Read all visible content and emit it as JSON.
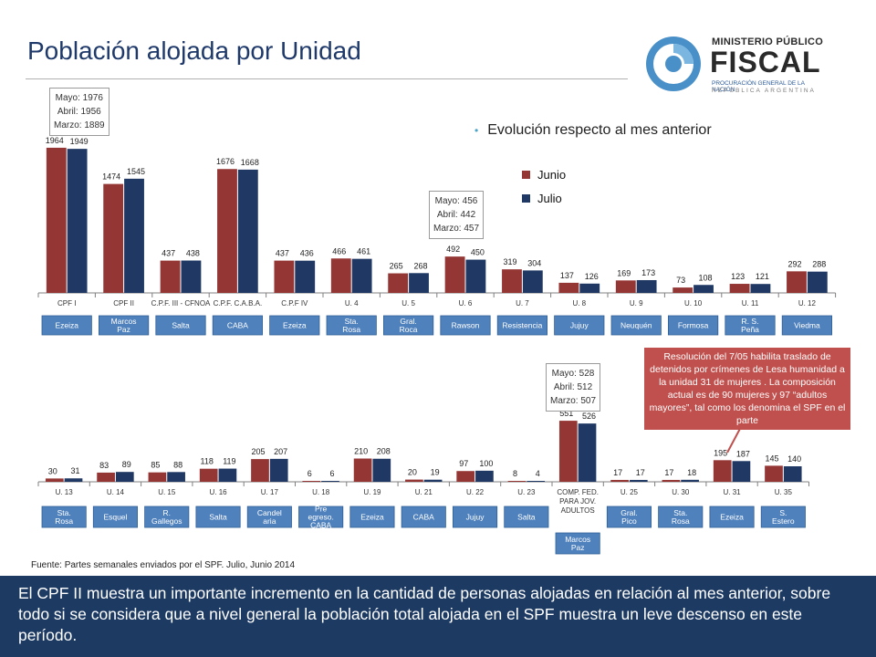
{
  "title": "Población alojada por Unidad",
  "logo": {
    "line1": "MINISTERIO PÚBLICO",
    "line2": "FISCAL",
    "line3": "PROCURACIÓN GENERAL DE LA NACIÓN",
    "line4": "REPÚBLICA ARGENTINA"
  },
  "subtitle": "Evolución respecto al mes anterior",
  "colors": {
    "junio": "#943634",
    "julio": "#1f3864",
    "badge": "#4f81bd",
    "callout": "#c0504d",
    "footer": "#1d3a63"
  },
  "notes": {
    "cpf1": "Mayo: 1976\nAbril: 1956\nMarzo: 1889",
    "u6": "Mayo: 456\nAbril: 442\nMarzo: 457",
    "comp": "Mayo: 528\nAbril: 512\nMarzo: 507"
  },
  "callout": "Resolución del 7/05 habilita traslado de detenidos por crímenes de Lesa humanidad a la unidad 31 de mujeres . La composición actual es de 90 mujeres y 97 “adultos mayores”, tal como los denomina el SPF en el parte",
  "source": "Fuente: Partes semanales enviados por el SPF. Julio, Junio 2014",
  "footer": "El CPF II muestra un importante incremento en la cantidad de personas alojadas en relación al mes anterior, sobre todo si se considera que a nivel general la población total alojada en el SPF muestra un leve descenso en este período.",
  "chart_data": [
    {
      "type": "bar",
      "legend": [
        "Junio",
        "Julio"
      ],
      "legend_position": "top-right",
      "categories": [
        "CPF I",
        "CPF II",
        "C.P.F. III - CFNOA",
        "C.P.F. C.A.B.A.",
        "C.P.F IV",
        "U. 4",
        "U. 5",
        "U. 6",
        "U. 7",
        "U. 8",
        "U. 9",
        "U. 10",
        "U. 11",
        "U. 12"
      ],
      "locations": [
        "Ezeiza",
        "Marcos Paz",
        "Salta",
        "CABA",
        "Ezeiza",
        "Sta. Rosa",
        "Gral. Roca",
        "Rawson",
        "Resistencia",
        "Jujuy",
        "Neuquén",
        "Formosa",
        "R. S. Peña",
        "Viedma"
      ],
      "series": [
        {
          "name": "Junio",
          "values": [
            1964,
            1474,
            437,
            1676,
            437,
            466,
            265,
            492,
            319,
            137,
            169,
            73,
            123,
            292
          ]
        },
        {
          "name": "Julio",
          "values": [
            1949,
            1545,
            438,
            1668,
            436,
            461,
            268,
            450,
            304,
            126,
            173,
            108,
            121,
            288
          ]
        }
      ],
      "ylim": [
        0,
        2000
      ]
    },
    {
      "type": "bar",
      "categories": [
        "U. 13",
        "U. 14",
        "U. 15",
        "U. 16",
        "U. 17",
        "U. 18",
        "U. 19",
        "U. 21",
        "U. 22",
        "U. 23",
        "COMP. FED. PARA JOV. ADULTOS",
        "U. 25",
        "U. 30",
        "U. 31",
        "U. 35"
      ],
      "locations": [
        "Sta. Rosa",
        "Esquel",
        "R. Gallegos",
        "Salta",
        "Candel aria",
        "Pre egreso. CABA",
        "Ezeiza",
        "CABA",
        "Jujuy",
        "Salta",
        "Marcos Paz",
        "Gral. Pico",
        "Sta. Rosa",
        "Ezeiza",
        "S. Estero"
      ],
      "series": [
        {
          "name": "Junio",
          "values": [
            30,
            83,
            85,
            118,
            205,
            6,
            210,
            20,
            97,
            8,
            551,
            17,
            17,
            195,
            145
          ]
        },
        {
          "name": "Julio",
          "values": [
            31,
            89,
            88,
            119,
            207,
            6,
            208,
            19,
            100,
            4,
            526,
            17,
            18,
            187,
            140
          ]
        }
      ],
      "ylim": [
        0,
        560
      ]
    }
  ]
}
